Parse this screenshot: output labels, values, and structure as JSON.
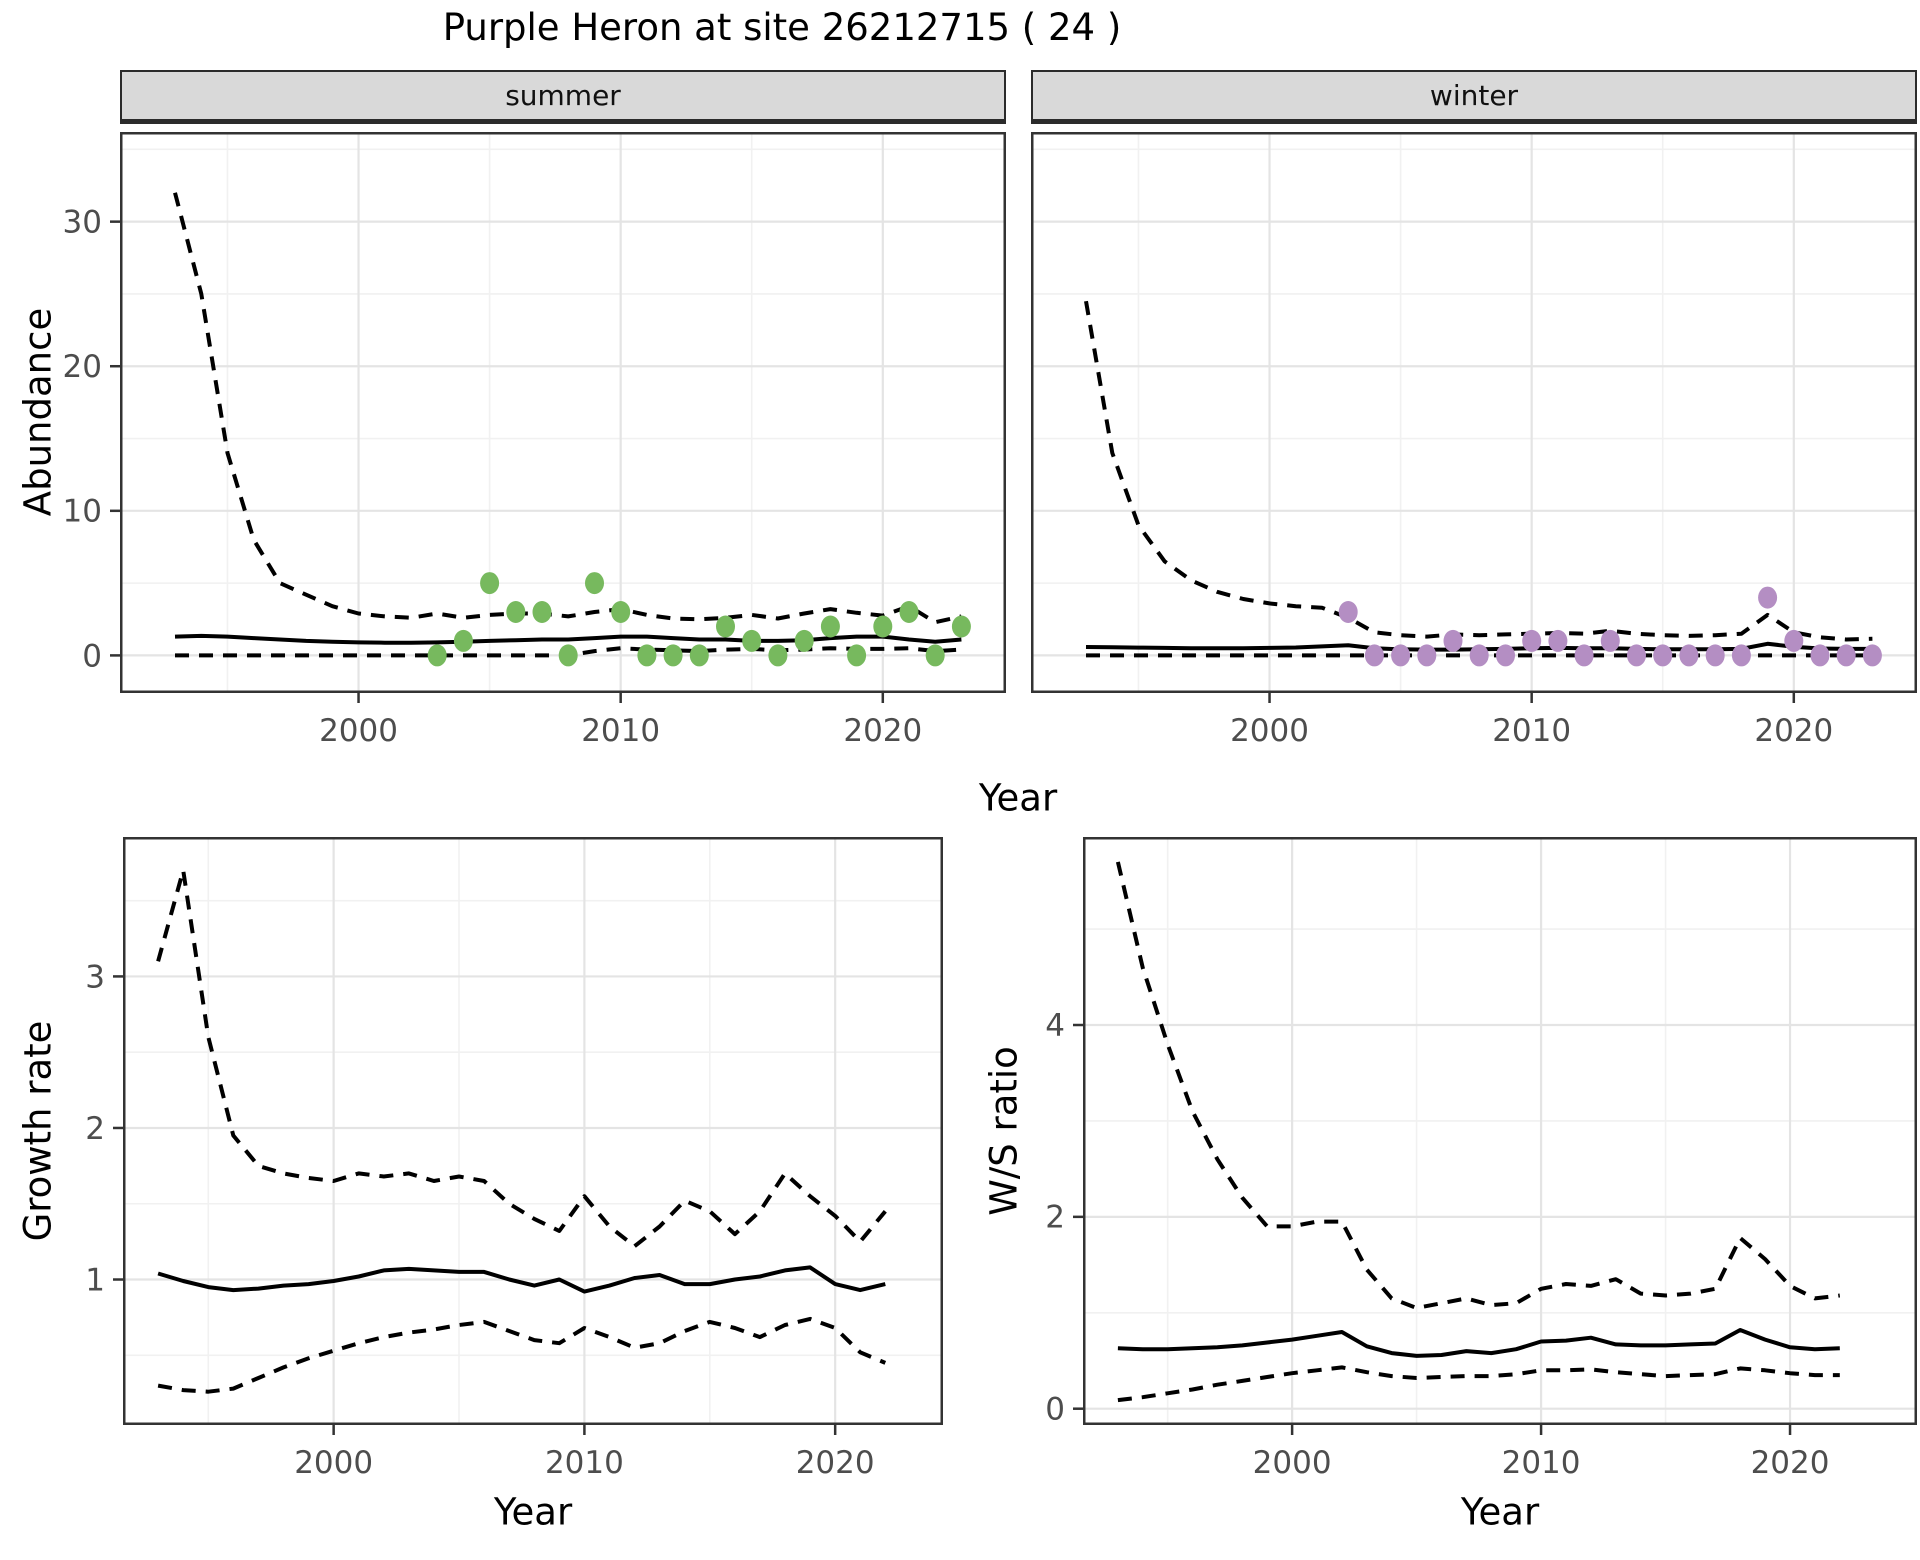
{
  "title": "Purple Heron at site 26212715 ( 24 )",
  "axes": {
    "abundance_ylabel": "Abundance",
    "growth_ylabel": "Growth rate",
    "ws_ylabel": "W/S ratio",
    "top_xlabel": "Year",
    "bottom_left_xlabel": "Year",
    "bottom_right_xlabel": "Year"
  },
  "colors": {
    "summer_points": "#77b95e",
    "winter_points": "#b48ec3",
    "line": "#000000",
    "strip_bg": "#d9d9d9",
    "panel_border": "#333333",
    "grid_major": "#e4e4e4",
    "grid_minor": "#f1f1f1",
    "tick_label": "#4d4d4d",
    "tick_mark": "#333333"
  },
  "chart_data": [
    {
      "id": "summer_abundance",
      "type": "line",
      "facet": "summer",
      "ylabel": "Abundance",
      "xlabel": "Year",
      "xlim": [
        1990.9,
        2024.7
      ],
      "ylim": [
        -2.6,
        36.2
      ],
      "x_ticks": [
        2000,
        2010,
        2020
      ],
      "x_minor": [
        1995,
        2005,
        2015
      ],
      "y_ticks": [
        0,
        10,
        20,
        30
      ],
      "y_minor": [
        5,
        15,
        25,
        35
      ],
      "show_y_tick_labels": true,
      "years": [
        1993,
        1994,
        1995,
        1996,
        1997,
        1998,
        1999,
        2000,
        2001,
        2002,
        2003,
        2004,
        2005,
        2006,
        2007,
        2008,
        2009,
        2010,
        2011,
        2012,
        2013,
        2014,
        2015,
        2016,
        2017,
        2018,
        2019,
        2020,
        2021,
        2022,
        2023
      ],
      "series": [
        {
          "name": "upper-95ci",
          "style": "dashed",
          "values": [
            32,
            25,
            14,
            8,
            5,
            4.2,
            3.4,
            2.9,
            2.7,
            2.6,
            2.9,
            2.6,
            2.8,
            2.9,
            2.9,
            2.7,
            3.0,
            3.2,
            2.8,
            2.55,
            2.5,
            2.6,
            2.8,
            2.55,
            2.9,
            3.2,
            2.95,
            2.75,
            3.4,
            2.3,
            2.7
          ]
        },
        {
          "name": "mean",
          "style": "solid",
          "values": [
            1.3,
            1.35,
            1.3,
            1.2,
            1.1,
            1.0,
            0.95,
            0.9,
            0.88,
            0.88,
            0.9,
            0.95,
            1.0,
            1.05,
            1.1,
            1.1,
            1.2,
            1.3,
            1.3,
            1.2,
            1.1,
            1.1,
            1.0,
            1.0,
            1.05,
            1.2,
            1.3,
            1.3,
            1.1,
            0.95,
            1.1
          ]
        },
        {
          "name": "lower-95ci",
          "style": "dashed",
          "values": [
            0,
            0,
            0,
            0,
            0,
            0,
            0,
            0,
            0,
            0,
            0,
            0,
            0,
            0,
            0,
            0,
            0.3,
            0.5,
            0.4,
            0.35,
            0.3,
            0.4,
            0.45,
            0.35,
            0.4,
            0.5,
            0.45,
            0.45,
            0.5,
            0.3,
            0.4
          ]
        }
      ],
      "points": {
        "name": "observed-counts-summer",
        "color": "#77b95e",
        "years": [
          2003,
          2004,
          2005,
          2006,
          2007,
          2008,
          2009,
          2010,
          2011,
          2012,
          2013,
          2014,
          2015,
          2016,
          2017,
          2018,
          2019,
          2020,
          2021,
          2022,
          2023
        ],
        "values": [
          0,
          1,
          5,
          3,
          3,
          0,
          5,
          3,
          0,
          0,
          0,
          2,
          1,
          0,
          1,
          2,
          0,
          2,
          3,
          0,
          2
        ]
      }
    },
    {
      "id": "winter_abundance",
      "type": "line",
      "facet": "winter",
      "ylabel": "Abundance",
      "xlabel": "Year",
      "xlim": [
        1990.9,
        2024.7
      ],
      "ylim": [
        -2.6,
        36.2
      ],
      "x_ticks": [
        2000,
        2010,
        2020
      ],
      "x_minor": [
        1995,
        2005,
        2015
      ],
      "y_ticks": [
        0,
        10,
        20,
        30
      ],
      "y_minor": [
        5,
        15,
        25,
        35
      ],
      "show_y_tick_labels": false,
      "years": [
        1993,
        1994,
        1995,
        1996,
        1997,
        1998,
        1999,
        2000,
        2001,
        2002,
        2003,
        2004,
        2005,
        2006,
        2007,
        2008,
        2009,
        2010,
        2011,
        2012,
        2013,
        2014,
        2015,
        2016,
        2017,
        2018,
        2019,
        2020,
        2021,
        2022,
        2023
      ],
      "series": [
        {
          "name": "upper-95ci",
          "style": "dashed",
          "values": [
            24.5,
            14,
            9,
            6.5,
            5.2,
            4.4,
            3.9,
            3.6,
            3.4,
            3.3,
            2.6,
            1.6,
            1.4,
            1.3,
            1.45,
            1.4,
            1.45,
            1.5,
            1.55,
            1.5,
            1.7,
            1.5,
            1.4,
            1.35,
            1.4,
            1.5,
            2.8,
            1.6,
            1.25,
            1.1,
            1.15
          ]
        },
        {
          "name": "mean",
          "style": "solid",
          "values": [
            0.58,
            0.56,
            0.54,
            0.52,
            0.5,
            0.5,
            0.5,
            0.52,
            0.55,
            0.62,
            0.7,
            0.5,
            0.42,
            0.4,
            0.4,
            0.42,
            0.45,
            0.5,
            0.52,
            0.5,
            0.5,
            0.45,
            0.42,
            0.42,
            0.42,
            0.45,
            0.8,
            0.6,
            0.48,
            0.45,
            0.45
          ]
        },
        {
          "name": "lower-95ci",
          "style": "dashed",
          "values": [
            0,
            0,
            0,
            0,
            0,
            0,
            0,
            0,
            0,
            0,
            0,
            0,
            0,
            0,
            0,
            0,
            0,
            0,
            0,
            0,
            0,
            0,
            0,
            0,
            0,
            0,
            0,
            0,
            0,
            0,
            0
          ]
        }
      ],
      "points": {
        "name": "observed-counts-winter",
        "color": "#b48ec3",
        "years": [
          2003,
          2004,
          2005,
          2006,
          2007,
          2008,
          2009,
          2010,
          2011,
          2012,
          2013,
          2014,
          2015,
          2016,
          2017,
          2018,
          2019,
          2020,
          2021,
          2022,
          2023
        ],
        "values": [
          3,
          0,
          0,
          0,
          1,
          0,
          0,
          1,
          1,
          0,
          1,
          0,
          0,
          0,
          0,
          0,
          4,
          1,
          0,
          0,
          0
        ]
      }
    },
    {
      "id": "growth_rate",
      "type": "line",
      "facet": null,
      "ylabel": "Growth rate",
      "xlabel": "Year",
      "xlim": [
        1991.6,
        2024.3
      ],
      "ylim": [
        0.04,
        3.92
      ],
      "x_ticks": [
        2000,
        2010,
        2020
      ],
      "x_minor": [
        1995,
        2005,
        2015
      ],
      "y_ticks": [
        1,
        2,
        3
      ],
      "y_minor": [
        0.5,
        1.5,
        2.5,
        3.5
      ],
      "show_y_tick_labels": true,
      "years": [
        1993,
        1994,
        1995,
        1996,
        1997,
        1998,
        1999,
        2000,
        2001,
        2002,
        2003,
        2004,
        2005,
        2006,
        2007,
        2008,
        2009,
        2010,
        2011,
        2012,
        2013,
        2014,
        2015,
        2016,
        2017,
        2018,
        2019,
        2020,
        2021,
        2022
      ],
      "series": [
        {
          "name": "upper-95ci",
          "style": "dashed",
          "values": [
            3.1,
            3.7,
            2.6,
            1.95,
            1.75,
            1.7,
            1.67,
            1.65,
            1.7,
            1.68,
            1.7,
            1.65,
            1.68,
            1.65,
            1.5,
            1.4,
            1.32,
            1.55,
            1.35,
            1.22,
            1.35,
            1.52,
            1.45,
            1.3,
            1.45,
            1.7,
            1.55,
            1.42,
            1.25,
            1.45
          ]
        },
        {
          "name": "mean",
          "style": "solid",
          "values": [
            1.04,
            0.99,
            0.95,
            0.93,
            0.94,
            0.96,
            0.97,
            0.99,
            1.02,
            1.06,
            1.07,
            1.06,
            1.05,
            1.05,
            1.0,
            0.96,
            1.0,
            0.92,
            0.96,
            1.01,
            1.03,
            0.97,
            0.97,
            1.0,
            1.02,
            1.06,
            1.08,
            0.97,
            0.93,
            0.97
          ]
        },
        {
          "name": "lower-95ci",
          "style": "dashed",
          "values": [
            0.3,
            0.27,
            0.26,
            0.28,
            0.35,
            0.42,
            0.48,
            0.53,
            0.58,
            0.62,
            0.65,
            0.67,
            0.7,
            0.72,
            0.66,
            0.6,
            0.58,
            0.68,
            0.62,
            0.55,
            0.58,
            0.66,
            0.72,
            0.68,
            0.62,
            0.7,
            0.74,
            0.68,
            0.52,
            0.45
          ]
        }
      ],
      "points": null
    },
    {
      "id": "ws_ratio",
      "type": "line",
      "facet": null,
      "ylabel": "W/S ratio",
      "xlabel": "Year",
      "xlim": [
        1991.6,
        2025.1
      ],
      "ylim": [
        -0.17,
        5.96
      ],
      "x_ticks": [
        2000,
        2010,
        2020
      ],
      "x_minor": [
        1995,
        2005,
        2015
      ],
      "y_ticks": [
        0,
        2,
        4
      ],
      "y_minor": [
        1,
        3,
        5
      ],
      "show_y_tick_labels": true,
      "years": [
        1993,
        1994,
        1995,
        1996,
        1997,
        1998,
        1999,
        2000,
        2001,
        2002,
        2003,
        2004,
        2005,
        2006,
        2007,
        2008,
        2009,
        2010,
        2011,
        2012,
        2013,
        2014,
        2015,
        2016,
        2017,
        2018,
        2019,
        2020,
        2021,
        2022
      ],
      "series": [
        {
          "name": "upper-95ci",
          "style": "dashed",
          "values": [
            5.7,
            4.6,
            3.8,
            3.1,
            2.6,
            2.2,
            1.9,
            1.9,
            1.95,
            1.95,
            1.45,
            1.15,
            1.05,
            1.1,
            1.15,
            1.08,
            1.1,
            1.25,
            1.3,
            1.28,
            1.35,
            1.2,
            1.18,
            1.2,
            1.25,
            1.78,
            1.56,
            1.28,
            1.15,
            1.18
          ]
        },
        {
          "name": "mean",
          "style": "solid",
          "values": [
            0.63,
            0.62,
            0.62,
            0.63,
            0.64,
            0.66,
            0.69,
            0.72,
            0.76,
            0.8,
            0.65,
            0.58,
            0.55,
            0.56,
            0.6,
            0.58,
            0.62,
            0.7,
            0.71,
            0.74,
            0.67,
            0.66,
            0.66,
            0.67,
            0.68,
            0.82,
            0.72,
            0.64,
            0.62,
            0.63
          ]
        },
        {
          "name": "lower-95ci",
          "style": "dashed",
          "values": [
            0.09,
            0.12,
            0.16,
            0.2,
            0.25,
            0.29,
            0.33,
            0.37,
            0.4,
            0.43,
            0.38,
            0.34,
            0.32,
            0.33,
            0.34,
            0.34,
            0.36,
            0.4,
            0.4,
            0.41,
            0.38,
            0.36,
            0.34,
            0.35,
            0.36,
            0.42,
            0.4,
            0.37,
            0.35,
            0.35
          ]
        }
      ],
      "points": null
    }
  ]
}
